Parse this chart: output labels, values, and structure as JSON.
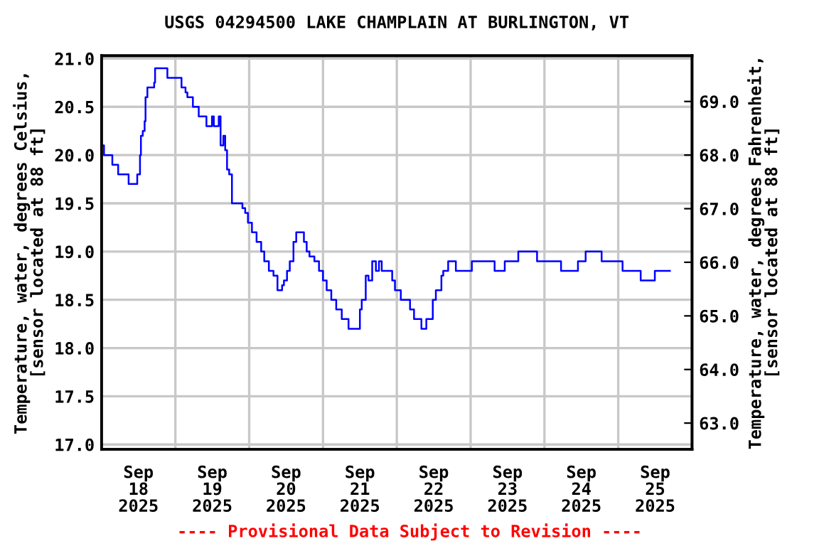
{
  "chart_data": {
    "type": "step",
    "title": "USGS 04294500 LAKE CHAMPLAIN AT BURLINGTON, VT",
    "ylabel": "Temperature, water, degrees Celsius,\n[sensor located at 88 ft]",
    "y2label": "Temperature, water, degrees Fahrenheit,\n[sensor located at 88 ft]",
    "annotations": [
      "---- Provisional Data Subject to Revision ----"
    ],
    "x": [
      "2025-09-18T00:00",
      "2025-09-18T00:48",
      "2025-09-18T03:30",
      "2025-09-18T05:24",
      "2025-09-18T08:48",
      "2025-09-18T11:36",
      "2025-09-18T12:30",
      "2025-09-18T12:48",
      "2025-09-18T13:24",
      "2025-09-18T14:00",
      "2025-09-18T14:18",
      "2025-09-18T14:54",
      "2025-09-18T16:12",
      "2025-09-18T17:06",
      "2025-09-18T17:24",
      "2025-09-18T20:48",
      "2025-09-18T21:24",
      "2025-09-19T01:42",
      "2025-09-19T02:00",
      "2025-09-19T03:18",
      "2025-09-19T03:54",
      "2025-09-19T05:42",
      "2025-09-19T07:36",
      "2025-09-19T10:06",
      "2025-09-19T11:54",
      "2025-09-19T12:30",
      "2025-09-19T14:06",
      "2025-09-19T14:42",
      "2025-09-19T15:36",
      "2025-09-19T16:12",
      "2025-09-19T16:48",
      "2025-09-19T17:30",
      "2025-09-19T18:24",
      "2025-09-19T21:48",
      "2025-09-19T22:42",
      "2025-09-19T23:36",
      "2025-09-20T00:54",
      "2025-09-20T02:24",
      "2025-09-20T03:54",
      "2025-09-20T04:54",
      "2025-09-20T06:24",
      "2025-09-20T07:54",
      "2025-09-20T09:12",
      "2025-09-20T10:42",
      "2025-09-20T11:18",
      "2025-09-20T12:18",
      "2025-09-20T13:12",
      "2025-09-20T14:24",
      "2025-09-20T15:18",
      "2025-09-20T17:48",
      "2025-09-20T18:42",
      "2025-09-20T19:36",
      "2025-09-20T21:12",
      "2025-09-20T22:42",
      "2025-09-21T00:00",
      "2025-09-21T01:12",
      "2025-09-21T02:42",
      "2025-09-21T04:18",
      "2025-09-21T06:06",
      "2025-09-21T08:18",
      "2025-09-21T12:00",
      "2025-09-21T12:36",
      "2025-09-21T13:54",
      "2025-09-21T14:48",
      "2025-09-21T16:00",
      "2025-09-21T17:12",
      "2025-09-21T18:12",
      "2025-09-21T19:06",
      "2025-09-21T22:30",
      "2025-09-21T23:24",
      "2025-09-22T01:18",
      "2025-09-22T04:18",
      "2025-09-22T05:36",
      "2025-09-22T08:00",
      "2025-09-22T09:36",
      "2025-09-22T11:42",
      "2025-09-22T12:42",
      "2025-09-22T14:30",
      "2025-09-22T15:06",
      "2025-09-22T16:42",
      "2025-09-22T19:12",
      "2025-09-23T00:24",
      "2025-09-23T07:48",
      "2025-09-23T11:06",
      "2025-09-23T15:30",
      "2025-09-23T21:36",
      "2025-09-24T05:24",
      "2025-09-24T10:54",
      "2025-09-24T13:24",
      "2025-09-24T18:36",
      "2025-09-25T01:24",
      "2025-09-25T07:18",
      "2025-09-25T11:54",
      "2025-09-25T16:48"
    ],
    "series": [
      {
        "color": "#0000ff",
        "values": [
          20.1,
          20.0,
          19.9,
          19.8,
          19.7,
          19.8,
          20.0,
          20.2,
          20.25,
          20.35,
          20.6,
          20.7,
          20.7,
          20.75,
          20.9,
          20.9,
          20.8,
          20.8,
          20.7,
          20.65,
          20.6,
          20.5,
          20.4,
          20.3,
          20.4,
          20.3,
          20.4,
          20.1,
          20.2,
          20.05,
          19.85,
          19.8,
          19.5,
          19.45,
          19.4,
          19.3,
          19.2,
          19.1,
          19.0,
          18.9,
          18.8,
          18.75,
          18.6,
          18.65,
          18.7,
          18.8,
          18.9,
          19.1,
          19.2,
          19.1,
          19.0,
          18.95,
          18.9,
          18.8,
          18.7,
          18.6,
          18.5,
          18.4,
          18.3,
          18.2,
          18.4,
          18.5,
          18.75,
          18.7,
          18.9,
          18.8,
          18.9,
          18.8,
          18.7,
          18.6,
          18.5,
          18.4,
          18.3,
          18.2,
          18.3,
          18.5,
          18.6,
          18.75,
          18.8,
          18.9,
          18.8,
          18.9,
          18.8,
          18.9,
          19.0,
          18.9,
          18.8,
          18.9,
          19.0,
          18.9,
          18.8,
          18.7,
          18.8,
          18.8
        ]
      }
    ],
    "xlim": [
      "2025-09-18T00:00",
      "2025-09-26T00:00"
    ],
    "xticks": [
      {
        "value": "2025-09-18T12:00",
        "label": "Sep\n18\n2025"
      },
      {
        "value": "2025-09-19T00:00",
        "label": null
      },
      {
        "value": "2025-09-19T12:00",
        "label": "Sep\n19\n2025"
      },
      {
        "value": "2025-09-20T00:00",
        "label": null
      },
      {
        "value": "2025-09-20T12:00",
        "label": "Sep\n20\n2025"
      },
      {
        "value": "2025-09-21T00:00",
        "label": null
      },
      {
        "value": "2025-09-21T12:00",
        "label": "Sep\n21\n2025"
      },
      {
        "value": "2025-09-22T00:00",
        "label": null
      },
      {
        "value": "2025-09-22T12:00",
        "label": "Sep\n22\n2025"
      },
      {
        "value": "2025-09-23T00:00",
        "label": null
      },
      {
        "value": "2025-09-23T12:00",
        "label": "Sep\n23\n2025"
      },
      {
        "value": "2025-09-24T00:00",
        "label": null
      },
      {
        "value": "2025-09-24T12:00",
        "label": "Sep\n24\n2025"
      },
      {
        "value": "2025-09-25T00:00",
        "label": null
      },
      {
        "value": "2025-09-25T12:00",
        "label": "Sep\n25\n2025"
      }
    ],
    "ylim": [
      16.95,
      21.03
    ],
    "yticks": [
      {
        "value": 17,
        "label": "17.0"
      },
      {
        "value": 17.5,
        "label": "17.5"
      },
      {
        "value": 18,
        "label": "18.0"
      },
      {
        "value": 18.5,
        "label": "18.5"
      },
      {
        "value": 19,
        "label": "19.0"
      },
      {
        "value": 19.5,
        "label": "19.5"
      },
      {
        "value": 20,
        "label": "20.0"
      },
      {
        "value": 20.5,
        "label": "20.5"
      },
      {
        "value": 21,
        "label": "21.0"
      }
    ],
    "y2lim": [
      62.51,
      69.854
    ],
    "y2ticks": [
      {
        "value": 63,
        "label": "63.0"
      },
      {
        "value": 64,
        "label": "64.0"
      },
      {
        "value": 65,
        "label": "65.0"
      },
      {
        "value": 66,
        "label": "66.0"
      },
      {
        "value": 67,
        "label": "67.0"
      },
      {
        "value": 68,
        "label": "68.0"
      },
      {
        "value": 69,
        "label": "69.0"
      }
    ],
    "grid": true,
    "legend": false,
    "line_style": "solid",
    "marker": "none"
  }
}
